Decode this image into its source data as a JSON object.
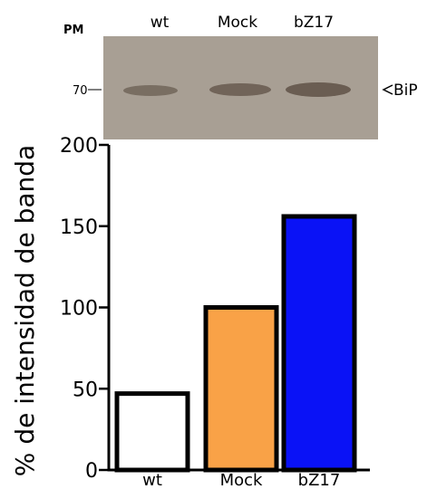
{
  "blot": {
    "pm_label": "PM",
    "lanes": [
      "wt",
      "Mock",
      "bZ17"
    ],
    "marker_label": "70",
    "band_label": "BiP",
    "background_color": "#a89f94",
    "band_color": "#6a5d52"
  },
  "chart_data": {
    "type": "bar",
    "categories": [
      "wt",
      "Mock",
      "bZ17"
    ],
    "values": [
      47,
      100,
      156
    ],
    "colors": [
      "#ffffff",
      "#f9a247",
      "#0a12f6"
    ],
    "ylabel": "% de intensidad de banda",
    "xlabel": "",
    "ylim": [
      0,
      200
    ],
    "yticks": [
      0,
      50,
      100,
      150,
      200
    ],
    "grid": false
  }
}
